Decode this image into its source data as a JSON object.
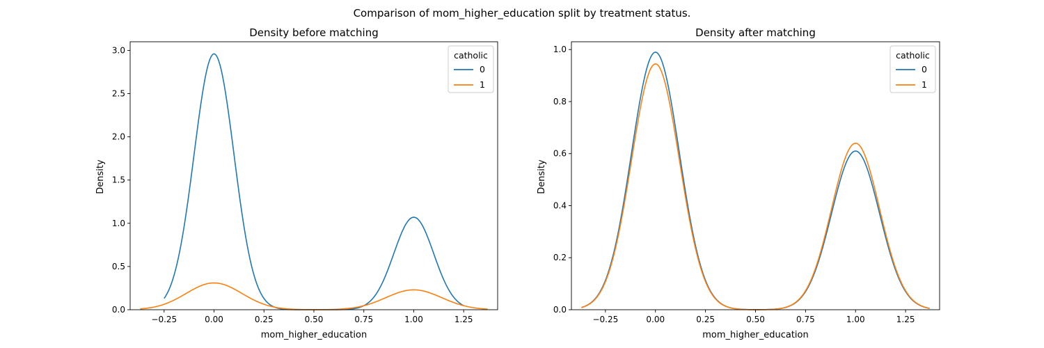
{
  "suptitle": "Comparison of mom_higher_education split by treatment status.",
  "colors": {
    "s0": "#1f77b4",
    "s1": "#ff7f0e"
  },
  "chart_data": [
    {
      "type": "line",
      "title": "Density before matching",
      "xlabel": "mom_higher_education",
      "ylabel": "Density",
      "xlim": [
        -0.42,
        1.42
      ],
      "ylim": [
        0,
        3.1
      ],
      "xticks": [
        -0.25,
        0.0,
        0.25,
        0.5,
        0.75,
        1.0,
        1.25
      ],
      "xtick_labels": [
        "−0.25",
        "0.00",
        "0.25",
        "0.50",
        "0.75",
        "1.00",
        "1.25"
      ],
      "yticks": [
        0.0,
        0.5,
        1.0,
        1.5,
        2.0,
        2.5,
        3.0
      ],
      "ytick_labels": [
        "0.0",
        "0.5",
        "1.0",
        "1.5",
        "2.0",
        "2.5",
        "3.0"
      ],
      "legend": {
        "title": "catholic",
        "placement": "top-right"
      },
      "series": [
        {
          "name": "0",
          "color": "#1f77b4",
          "x_range": [
            -0.25,
            1.25
          ],
          "peaks": [
            {
              "center": 0.0,
              "height": 2.96,
              "sigma": 0.1
            },
            {
              "center": 1.0,
              "height": 1.07,
              "sigma": 0.1
            }
          ]
        },
        {
          "name": "1",
          "color": "#ff7f0e",
          "x_range": [
            -0.37,
            1.37
          ],
          "peaks": [
            {
              "center": 0.0,
              "height": 0.31,
              "sigma": 0.14
            },
            {
              "center": 1.0,
              "height": 0.23,
              "sigma": 0.14
            }
          ]
        }
      ]
    },
    {
      "type": "line",
      "title": "Density after matching",
      "xlabel": "mom_higher_education",
      "ylabel": "Density",
      "xlim": [
        -0.42,
        1.42
      ],
      "ylim": [
        0,
        1.03
      ],
      "xticks": [
        -0.25,
        0.0,
        0.25,
        0.5,
        0.75,
        1.0,
        1.25
      ],
      "xtick_labels": [
        "−0.25",
        "0.00",
        "0.25",
        "0.50",
        "0.75",
        "1.00",
        "1.25"
      ],
      "yticks": [
        0.0,
        0.2,
        0.4,
        0.6,
        0.8,
        1.0
      ],
      "ytick_labels": [
        "0.0",
        "0.2",
        "0.4",
        "0.6",
        "0.8",
        "1.0"
      ],
      "legend": {
        "title": "catholic",
        "placement": "top-right"
      },
      "series": [
        {
          "name": "0",
          "color": "#1f77b4",
          "x_range": [
            -0.37,
            1.37
          ],
          "peaks": [
            {
              "center": 0.0,
              "height": 0.99,
              "sigma": 0.12
            },
            {
              "center": 1.0,
              "height": 0.61,
              "sigma": 0.12
            }
          ]
        },
        {
          "name": "1",
          "color": "#ff7f0e",
          "x_range": [
            -0.37,
            1.37
          ],
          "peaks": [
            {
              "center": 0.0,
              "height": 0.945,
              "sigma": 0.12
            },
            {
              "center": 1.0,
              "height": 0.64,
              "sigma": 0.12
            }
          ]
        }
      ]
    }
  ]
}
